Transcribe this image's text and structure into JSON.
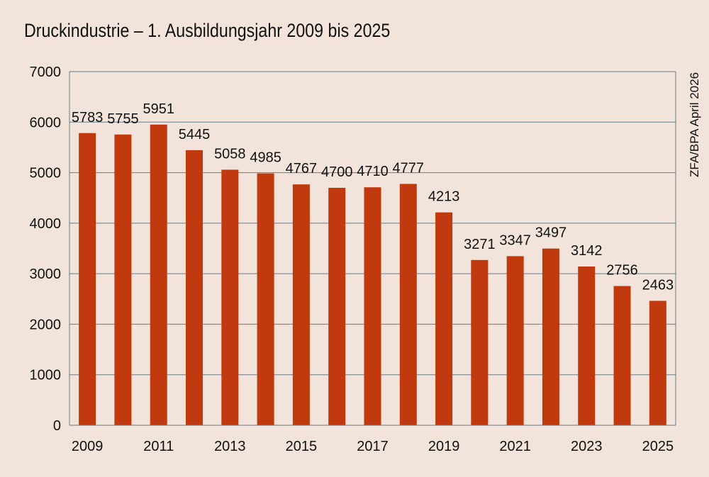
{
  "colors": {
    "background": "#f2e4da",
    "bar": "#c0390f",
    "grid": "#6b7a87",
    "text": "#111111"
  },
  "chart_data": {
    "type": "bar",
    "title": "Druckindustrie – 1. Ausbildungsjahr 2009 bis 2025",
    "source": "ZFA/BPA April 2026",
    "categories": [
      "2009",
      "2010",
      "2011",
      "2012",
      "2013",
      "2014",
      "2015",
      "2016",
      "2017",
      "2018",
      "2019",
      "2020",
      "2021",
      "2022",
      "2023",
      "2024",
      "2025"
    ],
    "x_tick_labels": [
      "2009",
      "",
      "2011",
      "",
      "2013",
      "",
      "2015",
      "",
      "2017",
      "",
      "2019",
      "",
      "2021",
      "",
      "2023",
      "",
      "2025"
    ],
    "values": [
      5783,
      5755,
      5951,
      5445,
      5058,
      4985,
      4767,
      4700,
      4710,
      4777,
      4213,
      3271,
      3347,
      3497,
      3142,
      2756,
      2463
    ],
    "y_ticks": [
      "0",
      "1000",
      "2000",
      "3000",
      "4000",
      "5000",
      "6000",
      "7000"
    ],
    "ylim": [
      0,
      7000
    ],
    "grid": true,
    "legend": "none"
  }
}
